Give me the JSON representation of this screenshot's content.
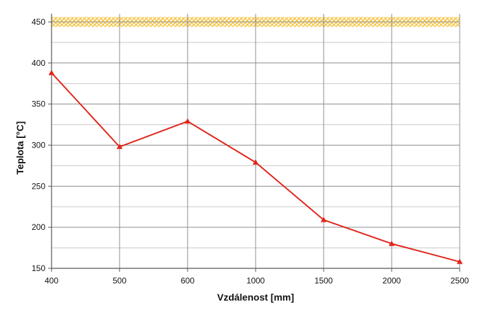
{
  "chart_data": {
    "type": "line",
    "title": "",
    "xlabel": "Vzdálenost  [mm]",
    "ylabel": "Teplota [°C]",
    "x_scale": "categorical",
    "categories": [
      "400",
      "500",
      "600",
      "1000",
      "1500",
      "2000",
      "2500"
    ],
    "series": [
      {
        "name": "",
        "color": "#e0251b",
        "marker": "triangle",
        "values": [
          388,
          298,
          329,
          279,
          209,
          180,
          158
        ]
      }
    ],
    "ylim": [
      150,
      460
    ],
    "yticks": [
      150,
      200,
      250,
      300,
      350,
      400,
      450
    ],
    "band": {
      "from": 444,
      "to": 456,
      "color": "#f5c542",
      "pattern": "crosshatch"
    },
    "grid": {
      "x": true,
      "y": true,
      "y_minor": true
    },
    "legend": "none"
  }
}
